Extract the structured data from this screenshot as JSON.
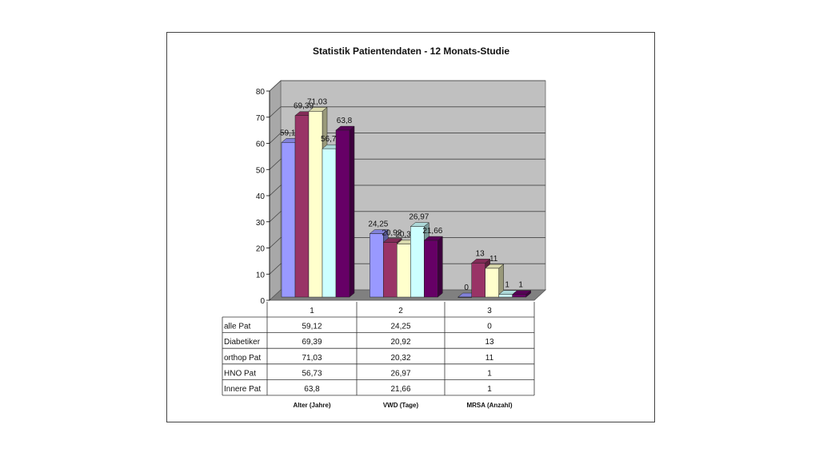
{
  "chart_data": {
    "type": "bar",
    "title": "Statistik Patientendaten - 12 Monats-Studie",
    "categories": [
      "1",
      "2",
      "3"
    ],
    "category_labels": [
      "Alter (Jahre)",
      "VWD (Tage)",
      "MRSA (Anzahl)"
    ],
    "series": [
      {
        "name": "alle Pat",
        "values": [
          59.12,
          24.25,
          0
        ],
        "labels": [
          "59,12",
          "24,25",
          "0"
        ],
        "color": "#9999FF"
      },
      {
        "name": "Diabetiker",
        "values": [
          69.39,
          20.92,
          13
        ],
        "labels": [
          "69,39",
          "20,92",
          "13"
        ],
        "color": "#993366"
      },
      {
        "name": "orthop Pat",
        "values": [
          71.03,
          20.32,
          11
        ],
        "labels": [
          "71,03",
          "20,32",
          "11"
        ],
        "color": "#FFFFCC"
      },
      {
        "name": "HNO Pat",
        "values": [
          56.73,
          26.97,
          1
        ],
        "labels": [
          "56,73",
          "26,97",
          "1"
        ],
        "color": "#CCFFFF"
      },
      {
        "name": "Innere Pat",
        "values": [
          63.8,
          21.66,
          1
        ],
        "labels": [
          "63,8",
          "21,66",
          "1"
        ],
        "color": "#660066"
      }
    ],
    "yticks": [
      "0",
      "10",
      "20",
      "30",
      "40",
      "50",
      "60",
      "70",
      "80"
    ],
    "ylim": [
      0,
      80
    ],
    "grid": true,
    "style": "3d-clustered-bar-with-data-table",
    "legend": "data-table"
  }
}
